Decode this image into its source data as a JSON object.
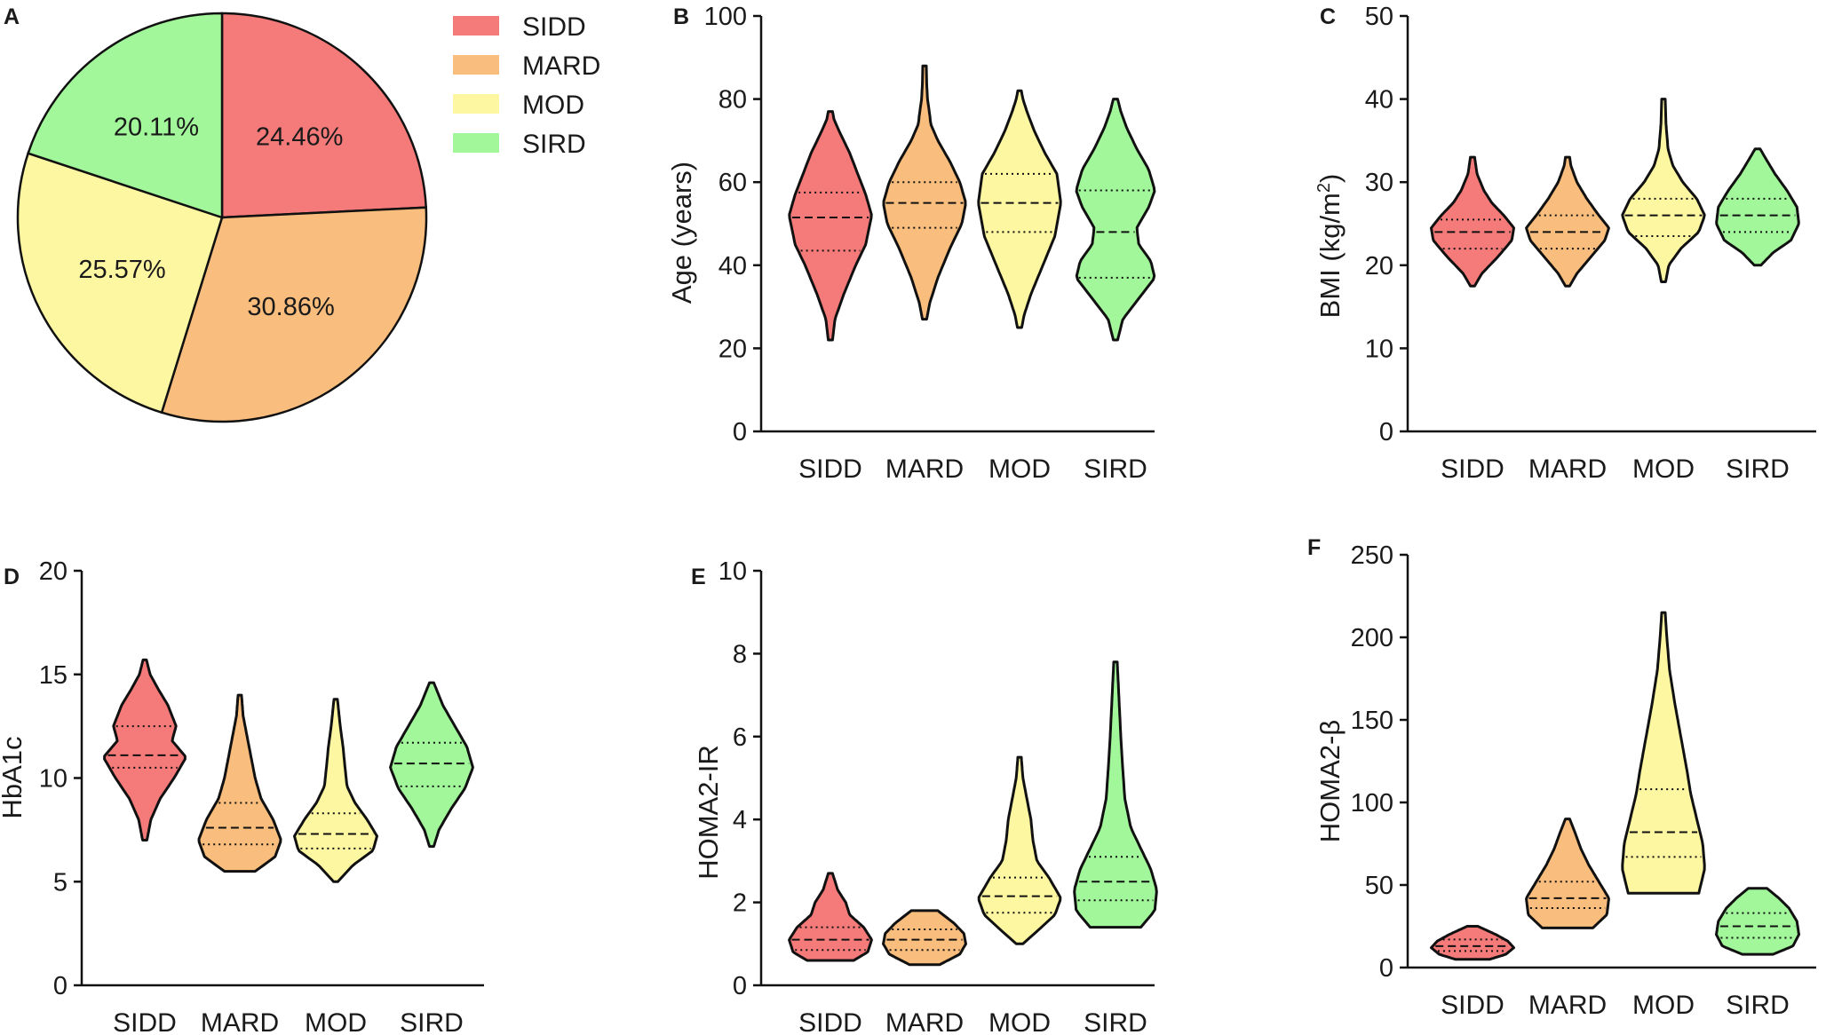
{
  "groups": [
    "SIDD",
    "MARD",
    "MOD",
    "SIRD"
  ],
  "colors": {
    "SIDD": "#f57a7a",
    "MARD": "#f9bd7d",
    "MOD": "#fdf7a2",
    "SIRD": "#a1f79a"
  },
  "chart_data": [
    {
      "id": "A",
      "type": "pie",
      "title": "",
      "panel_label": "A",
      "slices": [
        {
          "name": "SIDD",
          "value": 24.46,
          "label": "24.46%"
        },
        {
          "name": "MARD",
          "value": 30.86,
          "label": "30.86%"
        },
        {
          "name": "MOD",
          "value": 25.57,
          "label": "25.57%"
        },
        {
          "name": "SIRD",
          "value": 20.11,
          "label": "20.11%"
        }
      ],
      "legend": [
        "SIDD",
        "MARD",
        "MOD",
        "SIRD"
      ],
      "legend_position": "right"
    },
    {
      "id": "B",
      "type": "violin",
      "panel_label": "B",
      "ylabel": "Age (years)",
      "ylim": [
        0,
        100
      ],
      "yticks": [
        "0",
        "20",
        "40",
        "60",
        "80",
        "100"
      ],
      "categories": [
        "SIDD",
        "MARD",
        "MOD",
        "SIRD"
      ],
      "series": [
        {
          "name": "SIDD",
          "min": 22,
          "max": 77,
          "q1": 43.5,
          "median": 51.5,
          "q3": 57.5,
          "profile": [
            [
              22,
              0.02
            ],
            [
              27,
              0.08
            ],
            [
              33,
              0.3
            ],
            [
              40,
              0.6
            ],
            [
              45,
              0.85
            ],
            [
              52,
              1.0
            ],
            [
              57,
              0.85
            ],
            [
              62,
              0.65
            ],
            [
              67,
              0.45
            ],
            [
              72,
              0.2
            ],
            [
              75,
              0.06
            ],
            [
              77,
              0.02
            ]
          ]
        },
        {
          "name": "MARD",
          "min": 27,
          "max": 88,
          "q1": 49,
          "median": 55,
          "q3": 60,
          "profile": [
            [
              27,
              0.02
            ],
            [
              31,
              0.1
            ],
            [
              37,
              0.3
            ],
            [
              44,
              0.6
            ],
            [
              50,
              0.9
            ],
            [
              55,
              1.0
            ],
            [
              60,
              0.85
            ],
            [
              65,
              0.6
            ],
            [
              70,
              0.3
            ],
            [
              74,
              0.12
            ],
            [
              76,
              0.1
            ],
            [
              80,
              0.04
            ],
            [
              84,
              0.02
            ],
            [
              88,
              0.01
            ]
          ]
        },
        {
          "name": "MOD",
          "min": 25,
          "max": 82,
          "q1": 48,
          "median": 55,
          "q3": 62,
          "profile": [
            [
              25,
              0.02
            ],
            [
              28,
              0.08
            ],
            [
              33,
              0.25
            ],
            [
              40,
              0.55
            ],
            [
              47,
              0.85
            ],
            [
              55,
              1.0
            ],
            [
              62,
              0.9
            ],
            [
              67,
              0.6
            ],
            [
              72,
              0.35
            ],
            [
              77,
              0.15
            ],
            [
              80,
              0.05
            ],
            [
              82,
              0.01
            ]
          ]
        },
        {
          "name": "SIRD",
          "min": 22,
          "max": 80,
          "q1": 37,
          "median": 48,
          "q3": 58,
          "profile": [
            [
              22,
              0.02
            ],
            [
              27,
              0.15
            ],
            [
              32,
              0.55
            ],
            [
              37,
              0.95
            ],
            [
              41,
              0.85
            ],
            [
              45,
              0.55
            ],
            [
              49,
              0.5
            ],
            [
              54,
              0.8
            ],
            [
              58,
              0.95
            ],
            [
              63,
              0.8
            ],
            [
              68,
              0.5
            ],
            [
              73,
              0.25
            ],
            [
              77,
              0.1
            ],
            [
              80,
              0.02
            ]
          ]
        }
      ]
    },
    {
      "id": "C",
      "type": "violin",
      "panel_label": "C",
      "ylabel": "BMI (kg/m",
      "ylabel_sup": "2",
      "ylabel_close": ")",
      "ylim": [
        0,
        50
      ],
      "yticks": [
        "0",
        "10",
        "20",
        "30",
        "40",
        "50"
      ],
      "categories": [
        "SIDD",
        "MARD",
        "MOD",
        "SIRD"
      ],
      "series": [
        {
          "name": "SIDD",
          "min": 17.5,
          "max": 33,
          "q1": 22,
          "median": 24,
          "q3": 25.5,
          "profile": [
            [
              17.5,
              0.02
            ],
            [
              19,
              0.2
            ],
            [
              21,
              0.6
            ],
            [
              23,
              0.95
            ],
            [
              24.5,
              1.0
            ],
            [
              26,
              0.75
            ],
            [
              27.5,
              0.45
            ],
            [
              29,
              0.25
            ],
            [
              31,
              0.08
            ],
            [
              33,
              0.02
            ]
          ]
        },
        {
          "name": "MARD",
          "min": 17.5,
          "max": 33,
          "q1": 22,
          "median": 24,
          "q3": 26,
          "profile": [
            [
              17.5,
              0.02
            ],
            [
              19,
              0.2
            ],
            [
              21,
              0.55
            ],
            [
              23,
              0.9
            ],
            [
              24.5,
              1.0
            ],
            [
              26,
              0.75
            ],
            [
              28,
              0.45
            ],
            [
              30,
              0.2
            ],
            [
              32,
              0.05
            ],
            [
              33,
              0.02
            ]
          ]
        },
        {
          "name": "MOD",
          "min": 18,
          "max": 40,
          "q1": 23.5,
          "median": 26,
          "q3": 28,
          "profile": [
            [
              18,
              0.02
            ],
            [
              20,
              0.1
            ],
            [
              22,
              0.4
            ],
            [
              24,
              0.85
            ],
            [
              26,
              1.0
            ],
            [
              28,
              0.8
            ],
            [
              30,
              0.45
            ],
            [
              32,
              0.2
            ],
            [
              34,
              0.08
            ],
            [
              37,
              0.03
            ],
            [
              40,
              0.01
            ]
          ]
        },
        {
          "name": "SIRD",
          "min": 20,
          "max": 34,
          "q1": 24,
          "median": 26,
          "q3": 28,
          "profile": [
            [
              20,
              0.05
            ],
            [
              21.5,
              0.35
            ],
            [
              23,
              0.8
            ],
            [
              25,
              1.0
            ],
            [
              27,
              0.95
            ],
            [
              29,
              0.7
            ],
            [
              31,
              0.4
            ],
            [
              33,
              0.15
            ],
            [
              34,
              0.03
            ]
          ]
        }
      ]
    },
    {
      "id": "D",
      "type": "violin",
      "panel_label": "D",
      "ylabel": "HbA1c",
      "ylim": [
        0,
        20
      ],
      "yticks": [
        "0",
        "5",
        "10",
        "15",
        "20"
      ],
      "categories": [
        "SIDD",
        "MARD",
        "MOD",
        "SIRD"
      ],
      "series": [
        {
          "name": "SIDD",
          "min": 7,
          "max": 15.7,
          "q1": 10.5,
          "median": 11.1,
          "q3": 12.5,
          "profile": [
            [
              7,
              0.02
            ],
            [
              8,
              0.12
            ],
            [
              9,
              0.35
            ],
            [
              10,
              0.7
            ],
            [
              11,
              1.0
            ],
            [
              11.8,
              0.65
            ],
            [
              12.5,
              0.75
            ],
            [
              13.5,
              0.55
            ],
            [
              14.3,
              0.3
            ],
            [
              15,
              0.1
            ],
            [
              15.7,
              0.01
            ]
          ]
        },
        {
          "name": "MARD",
          "min": 5.5,
          "max": 14,
          "q1": 6.8,
          "median": 7.6,
          "q3": 8.8,
          "profile": [
            [
              5.5,
              0.35
            ],
            [
              6.2,
              0.85
            ],
            [
              7,
              1.0
            ],
            [
              8,
              0.8
            ],
            [
              9,
              0.5
            ],
            [
              10,
              0.35
            ],
            [
              11,
              0.25
            ],
            [
              12,
              0.15
            ],
            [
              13,
              0.05
            ],
            [
              14,
              0.01
            ]
          ]
        },
        {
          "name": "MOD",
          "min": 5,
          "max": 13.8,
          "q1": 6.6,
          "median": 7.3,
          "q3": 8.3,
          "profile": [
            [
              5,
              0.02
            ],
            [
              5.8,
              0.4
            ],
            [
              6.5,
              0.9
            ],
            [
              7.2,
              1.0
            ],
            [
              8,
              0.75
            ],
            [
              8.8,
              0.45
            ],
            [
              9.6,
              0.25
            ],
            [
              10.5,
              0.2
            ],
            [
              11.5,
              0.15
            ],
            [
              12.5,
              0.08
            ],
            [
              13.8,
              0.01
            ]
          ]
        },
        {
          "name": "SIRD",
          "min": 6.7,
          "max": 14.6,
          "q1": 9.6,
          "median": 10.7,
          "q3": 11.7,
          "profile": [
            [
              6.7,
              0.02
            ],
            [
              7.5,
              0.15
            ],
            [
              8.5,
              0.45
            ],
            [
              9.5,
              0.8
            ],
            [
              10.5,
              1.0
            ],
            [
              11.5,
              0.85
            ],
            [
              12.5,
              0.55
            ],
            [
              13.5,
              0.25
            ],
            [
              14.6,
              0.02
            ]
          ]
        }
      ]
    },
    {
      "id": "E",
      "type": "violin",
      "panel_label": "E",
      "ylabel": "HOMA2-IR",
      "ylim": [
        0,
        10
      ],
      "yticks": [
        "0",
        "2",
        "4",
        "6",
        "8",
        "10"
      ],
      "categories": [
        "SIDD",
        "MARD",
        "MOD",
        "SIRD"
      ],
      "series": [
        {
          "name": "SIDD",
          "min": 0.6,
          "max": 2.7,
          "q1": 0.85,
          "median": 1.1,
          "q3": 1.4,
          "profile": [
            [
              0.6,
              0.55
            ],
            [
              0.8,
              0.9
            ],
            [
              1.1,
              1.0
            ],
            [
              1.4,
              0.8
            ],
            [
              1.7,
              0.45
            ],
            [
              2.0,
              0.35
            ],
            [
              2.3,
              0.15
            ],
            [
              2.7,
              0.02
            ]
          ]
        },
        {
          "name": "MARD",
          "min": 0.5,
          "max": 1.8,
          "q1": 0.85,
          "median": 1.1,
          "q3": 1.35,
          "profile": [
            [
              0.5,
              0.35
            ],
            [
              0.75,
              0.85
            ],
            [
              1.0,
              1.0
            ],
            [
              1.25,
              0.95
            ],
            [
              1.5,
              0.7
            ],
            [
              1.8,
              0.3
            ]
          ]
        },
        {
          "name": "MOD",
          "min": 1.0,
          "max": 5.5,
          "q1": 1.75,
          "median": 2.15,
          "q3": 2.6,
          "profile": [
            [
              1.0,
              0.05
            ],
            [
              1.3,
              0.4
            ],
            [
              1.7,
              0.85
            ],
            [
              2.1,
              1.0
            ],
            [
              2.6,
              0.7
            ],
            [
              3.0,
              0.4
            ],
            [
              3.5,
              0.3
            ],
            [
              4.0,
              0.25
            ],
            [
              4.5,
              0.15
            ],
            [
              5.0,
              0.05
            ],
            [
              5.5,
              0.01
            ]
          ]
        },
        {
          "name": "SIRD",
          "min": 1.4,
          "max": 7.8,
          "q1": 2.05,
          "median": 2.5,
          "q3": 3.1,
          "profile": [
            [
              1.4,
              0.6
            ],
            [
              1.8,
              0.95
            ],
            [
              2.3,
              1.0
            ],
            [
              2.8,
              0.85
            ],
            [
              3.3,
              0.6
            ],
            [
              3.8,
              0.35
            ],
            [
              4.5,
              0.2
            ],
            [
              5.2,
              0.15
            ],
            [
              6.0,
              0.1
            ],
            [
              7.0,
              0.05
            ],
            [
              7.8,
              0.01
            ]
          ]
        }
      ]
    },
    {
      "id": "F",
      "type": "violin",
      "panel_label": "F",
      "ylabel": "HOMA2-β",
      "ylim": [
        0,
        250
      ],
      "yticks": [
        "0",
        "50",
        "100",
        "150",
        "200",
        "250"
      ],
      "categories": [
        "SIDD",
        "MARD",
        "MOD",
        "SIRD"
      ],
      "series": [
        {
          "name": "SIDD",
          "min": 5,
          "max": 25,
          "q1": 10,
          "median": 13,
          "q3": 17,
          "profile": [
            [
              5,
              0.4
            ],
            [
              8,
              0.8
            ],
            [
              12,
              1.0
            ],
            [
              16,
              0.85
            ],
            [
              20,
              0.55
            ],
            [
              25,
              0.1
            ]
          ]
        },
        {
          "name": "MARD",
          "min": 24,
          "max": 90,
          "q1": 36,
          "median": 42,
          "q3": 52,
          "profile": [
            [
              24,
              0.6
            ],
            [
              32,
              0.95
            ],
            [
              42,
              1.0
            ],
            [
              52,
              0.75
            ],
            [
              62,
              0.5
            ],
            [
              72,
              0.3
            ],
            [
              82,
              0.15
            ],
            [
              90,
              0.02
            ]
          ]
        },
        {
          "name": "MOD",
          "min": 45,
          "max": 215,
          "q1": 67,
          "median": 82,
          "q3": 108,
          "profile": [
            [
              45,
              0.85
            ],
            [
              60,
              1.0
            ],
            [
              75,
              0.95
            ],
            [
              90,
              0.8
            ],
            [
              105,
              0.65
            ],
            [
              120,
              0.55
            ],
            [
              140,
              0.4
            ],
            [
              160,
              0.25
            ],
            [
              180,
              0.12
            ],
            [
              200,
              0.05
            ],
            [
              215,
              0.01
            ]
          ]
        },
        {
          "name": "SIRD",
          "min": 8,
          "max": 48,
          "q1": 18,
          "median": 25,
          "q3": 33,
          "profile": [
            [
              8,
              0.35
            ],
            [
              13,
              0.85
            ],
            [
              20,
              1.0
            ],
            [
              28,
              0.95
            ],
            [
              36,
              0.75
            ],
            [
              42,
              0.5
            ],
            [
              48,
              0.2
            ]
          ]
        }
      ]
    }
  ]
}
